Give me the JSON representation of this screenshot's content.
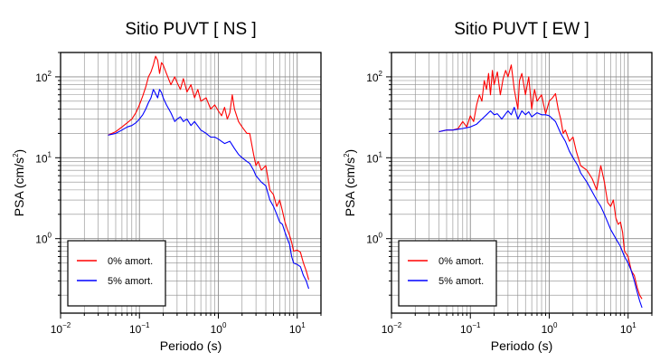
{
  "chart_data": [
    {
      "type": "line",
      "title": "Sitio PUVT [ NS ]",
      "xlabel": "Periodo (s)",
      "ylabel_main": "PSA (cm/s",
      "ylabel_exp": "2",
      "ylabel_tail": ")",
      "xscale": "log",
      "yscale": "log",
      "xlim": [
        0.01,
        20
      ],
      "ylim": [
        0.12,
        200
      ],
      "grid": true,
      "legend_position": "bottom-left",
      "x_ticks": [
        {
          "value": 0.01,
          "base": "10",
          "exp": "−2"
        },
        {
          "value": 0.1,
          "base": "10",
          "exp": "−1"
        },
        {
          "value": 1,
          "base": "10",
          "exp": "0"
        },
        {
          "value": 10,
          "base": "10",
          "exp": "1"
        }
      ],
      "y_ticks": [
        {
          "value": 1,
          "base": "10",
          "exp": "0"
        },
        {
          "value": 10,
          "base": "10",
          "exp": "1"
        },
        {
          "value": 100,
          "base": "10",
          "exp": "2"
        }
      ],
      "series": [
        {
          "name": "0% amort.",
          "color": "#ff0000",
          "points": [
            [
              0.04,
              19
            ],
            [
              0.05,
              21
            ],
            [
              0.06,
              24
            ],
            [
              0.07,
              27
            ],
            [
              0.08,
              30
            ],
            [
              0.09,
              36
            ],
            [
              0.1,
              45
            ],
            [
              0.11,
              58
            ],
            [
              0.12,
              75
            ],
            [
              0.13,
              100
            ],
            [
              0.14,
              115
            ],
            [
              0.15,
              140
            ],
            [
              0.16,
              180
            ],
            [
              0.17,
              160
            ],
            [
              0.18,
              110
            ],
            [
              0.19,
              150
            ],
            [
              0.2,
              140
            ],
            [
              0.22,
              110
            ],
            [
              0.25,
              80
            ],
            [
              0.28,
              100
            ],
            [
              0.3,
              85
            ],
            [
              0.33,
              70
            ],
            [
              0.36,
              95
            ],
            [
              0.4,
              65
            ],
            [
              0.45,
              80
            ],
            [
              0.5,
              55
            ],
            [
              0.55,
              70
            ],
            [
              0.6,
              50
            ],
            [
              0.7,
              55
            ],
            [
              0.8,
              40
            ],
            [
              0.9,
              45
            ],
            [
              1.0,
              38
            ],
            [
              1.1,
              33
            ],
            [
              1.2,
              42
            ],
            [
              1.3,
              30
            ],
            [
              1.4,
              36
            ],
            [
              1.5,
              60
            ],
            [
              1.6,
              40
            ],
            [
              1.8,
              28
            ],
            [
              2.0,
              24
            ],
            [
              2.3,
              20
            ],
            [
              2.5,
              20
            ],
            [
              2.8,
              11
            ],
            [
              3.0,
              8
            ],
            [
              3.2,
              9
            ],
            [
              3.5,
              7
            ],
            [
              4.0,
              8
            ],
            [
              4.5,
              4
            ],
            [
              5.0,
              3.5
            ],
            [
              5.5,
              2.5
            ],
            [
              6.0,
              3
            ],
            [
              6.5,
              2.2
            ],
            [
              7.0,
              1.6
            ],
            [
              7.5,
              1.3
            ],
            [
              8.0,
              1.1
            ],
            [
              8.5,
              0.9
            ],
            [
              9.0,
              0.7
            ],
            [
              10,
              0.72
            ],
            [
              11,
              0.68
            ],
            [
              12,
              0.5
            ],
            [
              13,
              0.4
            ],
            [
              14,
              0.31
            ]
          ]
        },
        {
          "name": "5% amort.",
          "color": "#0000ff",
          "points": [
            [
              0.04,
              19
            ],
            [
              0.05,
              20
            ],
            [
              0.06,
              22
            ],
            [
              0.07,
              24
            ],
            [
              0.08,
              25
            ],
            [
              0.09,
              27
            ],
            [
              0.1,
              30
            ],
            [
              0.11,
              34
            ],
            [
              0.12,
              40
            ],
            [
              0.13,
              48
            ],
            [
              0.14,
              55
            ],
            [
              0.15,
              70
            ],
            [
              0.16,
              62
            ],
            [
              0.17,
              55
            ],
            [
              0.18,
              70
            ],
            [
              0.19,
              64
            ],
            [
              0.2,
              55
            ],
            [
              0.22,
              45
            ],
            [
              0.25,
              36
            ],
            [
              0.28,
              28
            ],
            [
              0.3,
              30
            ],
            [
              0.33,
              32
            ],
            [
              0.36,
              28
            ],
            [
              0.4,
              30
            ],
            [
              0.45,
              25
            ],
            [
              0.5,
              28
            ],
            [
              0.6,
              22
            ],
            [
              0.7,
              20
            ],
            [
              0.8,
              18
            ],
            [
              0.9,
              18
            ],
            [
              1.0,
              17
            ],
            [
              1.2,
              15
            ],
            [
              1.4,
              16
            ],
            [
              1.6,
              13
            ],
            [
              1.8,
              11
            ],
            [
              2.0,
              10
            ],
            [
              2.3,
              9
            ],
            [
              2.5,
              8.5
            ],
            [
              2.8,
              7
            ],
            [
              3.0,
              6
            ],
            [
              3.5,
              5
            ],
            [
              4.0,
              4.5
            ],
            [
              4.5,
              3
            ],
            [
              5.0,
              2.5
            ],
            [
              5.5,
              2
            ],
            [
              6.0,
              1.6
            ],
            [
              6.5,
              1.5
            ],
            [
              7.0,
              1.2
            ],
            [
              7.5,
              1
            ],
            [
              8.0,
              0.85
            ],
            [
              8.5,
              0.6
            ],
            [
              9.0,
              0.5
            ],
            [
              10,
              0.48
            ],
            [
              11,
              0.45
            ],
            [
              12,
              0.35
            ],
            [
              13,
              0.3
            ],
            [
              14,
              0.24
            ]
          ]
        }
      ]
    },
    {
      "type": "line",
      "title": "Sitio PUVT [ EW ]",
      "xlabel": "Periodo (s)",
      "ylabel_main": "PSA (cm/s",
      "ylabel_exp": "2",
      "ylabel_tail": ")",
      "xscale": "log",
      "yscale": "log",
      "xlim": [
        0.01,
        20
      ],
      "ylim": [
        0.12,
        200
      ],
      "grid": true,
      "legend_position": "bottom-left",
      "x_ticks": [
        {
          "value": 0.01,
          "base": "10",
          "exp": "−2"
        },
        {
          "value": 0.1,
          "base": "10",
          "exp": "−1"
        },
        {
          "value": 1,
          "base": "10",
          "exp": "0"
        },
        {
          "value": 10,
          "base": "10",
          "exp": "1"
        }
      ],
      "y_ticks": [
        {
          "value": 1,
          "base": "10",
          "exp": "0"
        },
        {
          "value": 10,
          "base": "10",
          "exp": "1"
        },
        {
          "value": 100,
          "base": "10",
          "exp": "2"
        }
      ],
      "series": [
        {
          "name": "0% amort.",
          "color": "#ff0000",
          "points": [
            [
              0.04,
              21
            ],
            [
              0.05,
              22
            ],
            [
              0.06,
              22
            ],
            [
              0.07,
              23
            ],
            [
              0.08,
              28
            ],
            [
              0.09,
              24
            ],
            [
              0.1,
              33
            ],
            [
              0.11,
              28
            ],
            [
              0.12,
              45
            ],
            [
              0.13,
              60
            ],
            [
              0.14,
              50
            ],
            [
              0.15,
              90
            ],
            [
              0.16,
              70
            ],
            [
              0.17,
              110
            ],
            [
              0.18,
              60
            ],
            [
              0.19,
              120
            ],
            [
              0.2,
              80
            ],
            [
              0.22,
              115
            ],
            [
              0.24,
              60
            ],
            [
              0.26,
              95
            ],
            [
              0.28,
              120
            ],
            [
              0.3,
              100
            ],
            [
              0.33,
              140
            ],
            [
              0.36,
              70
            ],
            [
              0.4,
              40
            ],
            [
              0.42,
              90
            ],
            [
              0.45,
              110
            ],
            [
              0.5,
              60
            ],
            [
              0.55,
              100
            ],
            [
              0.6,
              40
            ],
            [
              0.65,
              70
            ],
            [
              0.7,
              50
            ],
            [
              0.8,
              60
            ],
            [
              0.9,
              35
            ],
            [
              1.0,
              50
            ],
            [
              1.1,
              55
            ],
            [
              1.2,
              62
            ],
            [
              1.3,
              40
            ],
            [
              1.4,
              30
            ],
            [
              1.5,
              20
            ],
            [
              1.6,
              22
            ],
            [
              1.8,
              16
            ],
            [
              2.0,
              18
            ],
            [
              2.2,
              12
            ],
            [
              2.5,
              8
            ],
            [
              3.0,
              7
            ],
            [
              3.5,
              5.5
            ],
            [
              4.0,
              4
            ],
            [
              4.5,
              8
            ],
            [
              5.0,
              5
            ],
            [
              5.5,
              2.8
            ],
            [
              6.0,
              2.5
            ],
            [
              6.5,
              3
            ],
            [
              7.0,
              1.8
            ],
            [
              7.5,
              1.5
            ],
            [
              8.0,
              1.6
            ],
            [
              8.5,
              1.2
            ],
            [
              9.0,
              0.7
            ],
            [
              10,
              0.6
            ],
            [
              11,
              0.4
            ],
            [
              12,
              0.35
            ],
            [
              13,
              0.25
            ],
            [
              14,
              0.2
            ],
            [
              15,
              0.18
            ]
          ]
        },
        {
          "name": "5% amort.",
          "color": "#0000ff",
          "points": [
            [
              0.04,
              21
            ],
            [
              0.05,
              22
            ],
            [
              0.06,
              22
            ],
            [
              0.08,
              23
            ],
            [
              0.1,
              24
            ],
            [
              0.12,
              26
            ],
            [
              0.14,
              30
            ],
            [
              0.16,
              34
            ],
            [
              0.18,
              38
            ],
            [
              0.2,
              34
            ],
            [
              0.22,
              35
            ],
            [
              0.25,
              30
            ],
            [
              0.28,
              35
            ],
            [
              0.3,
              38
            ],
            [
              0.33,
              34
            ],
            [
              0.36,
              42
            ],
            [
              0.4,
              30
            ],
            [
              0.45,
              38
            ],
            [
              0.5,
              34
            ],
            [
              0.55,
              37
            ],
            [
              0.6,
              32
            ],
            [
              0.7,
              36
            ],
            [
              0.8,
              34
            ],
            [
              0.9,
              34
            ],
            [
              1.0,
              33
            ],
            [
              1.2,
              28
            ],
            [
              1.4,
              20
            ],
            [
              1.6,
              16
            ],
            [
              1.8,
              12
            ],
            [
              2.0,
              10
            ],
            [
              2.3,
              8
            ],
            [
              2.5,
              6.5
            ],
            [
              3.0,
              5
            ],
            [
              3.5,
              3.8
            ],
            [
              4.0,
              3
            ],
            [
              4.5,
              2.5
            ],
            [
              5.0,
              2
            ],
            [
              5.5,
              1.6
            ],
            [
              6.0,
              1.3
            ],
            [
              7.0,
              1
            ],
            [
              8.0,
              0.8
            ],
            [
              9.0,
              0.6
            ],
            [
              10,
              0.5
            ],
            [
              11,
              0.4
            ],
            [
              12,
              0.3
            ],
            [
              13,
              0.22
            ],
            [
              14,
              0.17
            ],
            [
              15,
              0.14
            ]
          ]
        }
      ]
    }
  ]
}
